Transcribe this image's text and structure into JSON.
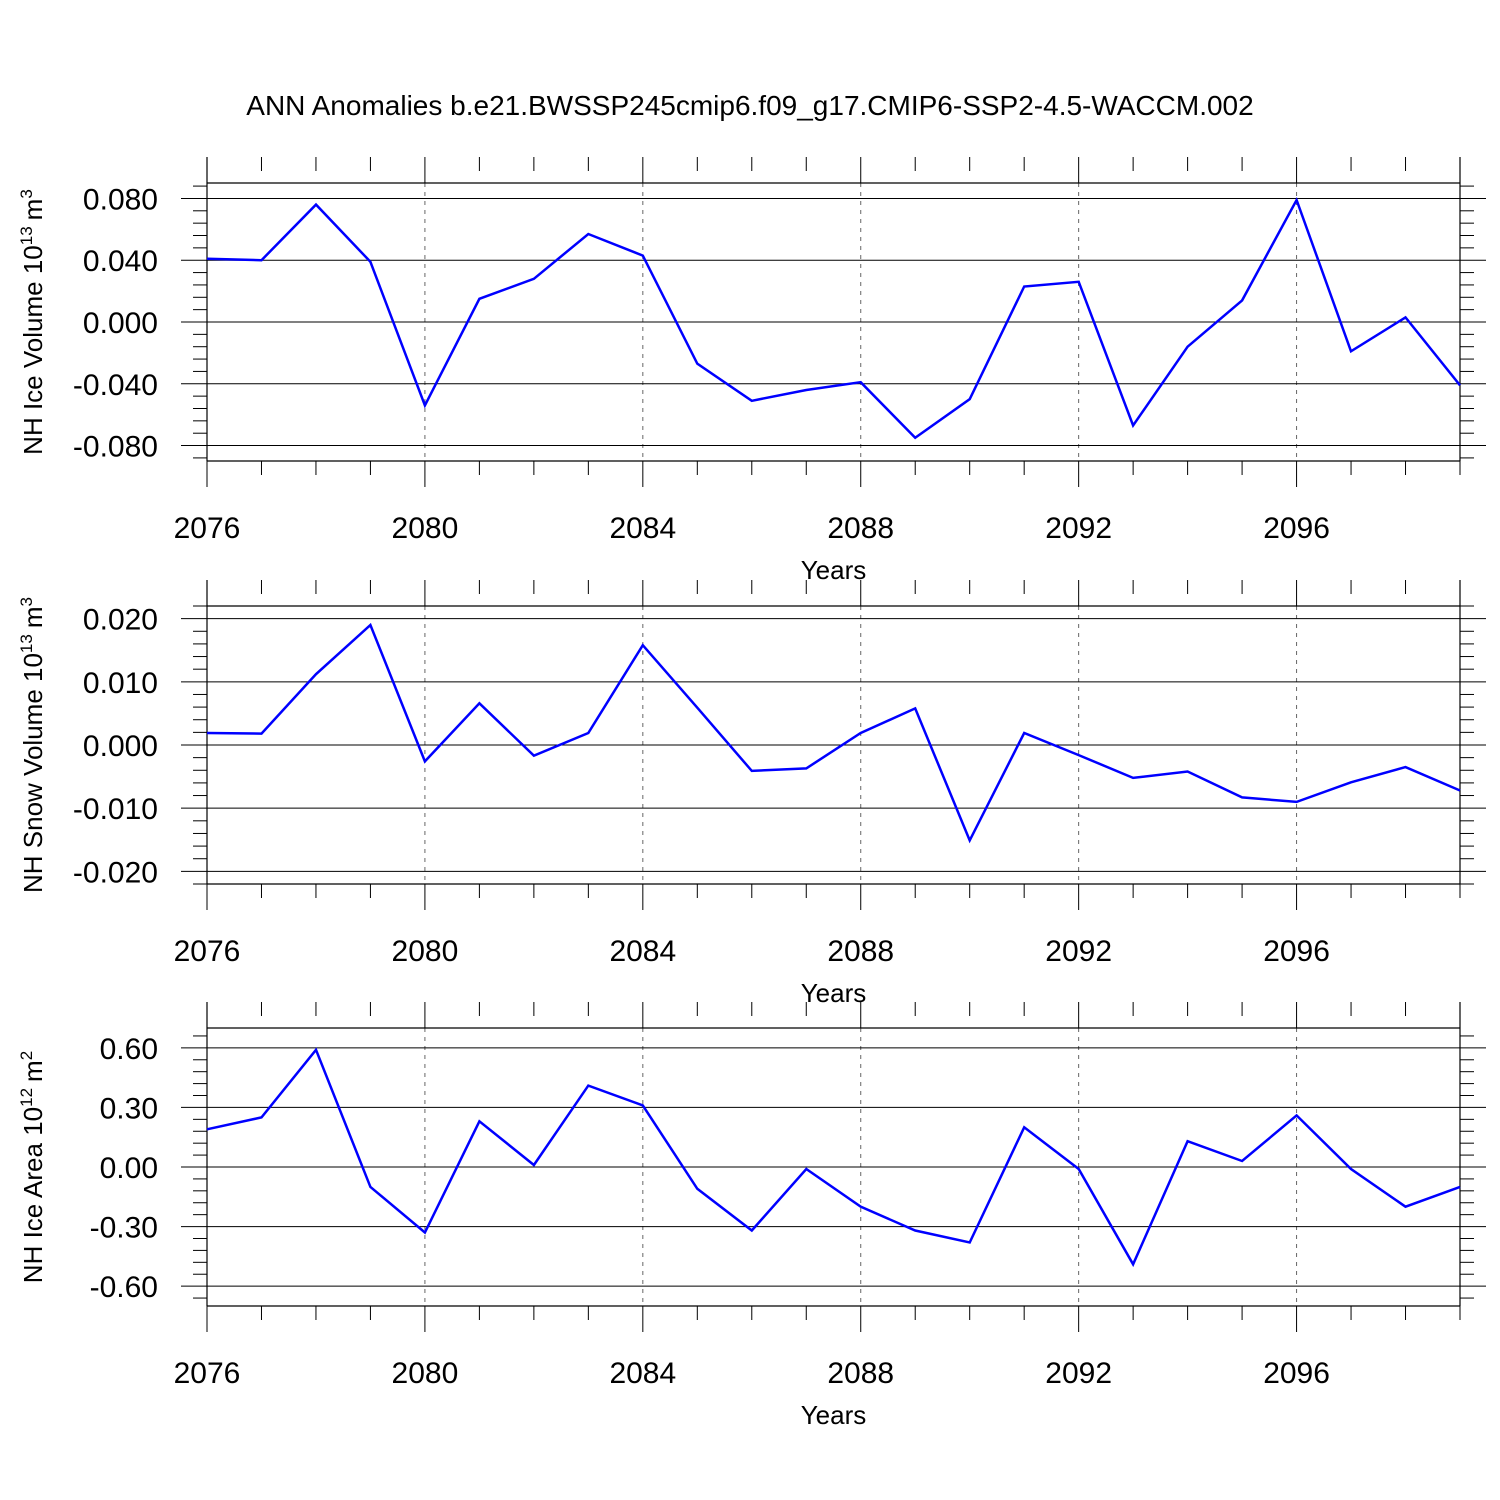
{
  "figure": {
    "title": "ANN Anomalies b.e21.BWSSP245cmip6.f09_g17.CMIP6-SSP2-4.5-WACCM.002",
    "line_color": "#0000ff"
  },
  "chart_data": [
    {
      "type": "line",
      "ylabel_main": "NH Ice Volume 10",
      "ylabel_exp": "13",
      "ylabel_unit": "m",
      "ylabel_unit_exp": "3",
      "xlabel": "Years",
      "xlim": [
        2076,
        2099
      ],
      "ylim": [
        -0.09,
        0.09
      ],
      "xticks": [
        2076,
        2080,
        2084,
        2088,
        2092,
        2096
      ],
      "yticks": [
        -0.08,
        -0.04,
        0.0,
        0.04,
        0.08
      ],
      "ytick_labels": [
        "-0.080",
        "-0.040",
        "0.000",
        "0.040",
        "0.080"
      ],
      "grid_x": [
        2080,
        2084,
        2088,
        2092,
        2096
      ],
      "x": [
        2076,
        2077,
        2078,
        2079,
        2080,
        2081,
        2082,
        2083,
        2084,
        2085,
        2086,
        2087,
        2088,
        2089,
        2090,
        2091,
        2092,
        2093,
        2094,
        2095,
        2096,
        2097,
        2098,
        2099
      ],
      "values": [
        0.041,
        0.04,
        0.076,
        0.039,
        -0.054,
        0.015,
        0.028,
        0.057,
        0.043,
        -0.027,
        -0.051,
        -0.044,
        -0.039,
        -0.075,
        -0.05,
        0.023,
        0.026,
        -0.067,
        -0.016,
        0.014,
        0.079,
        -0.019,
        0.003,
        -0.041
      ]
    },
    {
      "type": "line",
      "ylabel_main": "NH Snow Volume 10",
      "ylabel_exp": "13",
      "ylabel_unit": "m",
      "ylabel_unit_exp": "3",
      "xlabel": "Years",
      "xlim": [
        2076,
        2099
      ],
      "ylim": [
        -0.022,
        0.022
      ],
      "xticks": [
        2076,
        2080,
        2084,
        2088,
        2092,
        2096
      ],
      "yticks": [
        -0.02,
        -0.01,
        0.0,
        0.01,
        0.02
      ],
      "ytick_labels": [
        "-0.020",
        "-0.010",
        "0.000",
        "0.010",
        "0.020"
      ],
      "grid_x": [
        2080,
        2084,
        2088,
        2092,
        2096
      ],
      "x": [
        2076,
        2077,
        2078,
        2079,
        2080,
        2081,
        2082,
        2083,
        2084,
        2085,
        2086,
        2087,
        2088,
        2089,
        2090,
        2091,
        2092,
        2093,
        2094,
        2095,
        2096,
        2097,
        2098,
        2099
      ],
      "values": [
        0.0019,
        0.0018,
        0.0112,
        0.019,
        -0.0026,
        0.0066,
        -0.0017,
        0.0019,
        0.0158,
        0.0059,
        -0.0041,
        -0.0037,
        0.0019,
        0.0058,
        -0.0151,
        0.0019,
        -0.0016,
        -0.0052,
        -0.0042,
        -0.0083,
        -0.009,
        -0.0059,
        -0.0035,
        -0.0072
      ]
    },
    {
      "type": "line",
      "ylabel_main": "NH Ice Area 10",
      "ylabel_exp": "12",
      "ylabel_unit": "m",
      "ylabel_unit_exp": "2",
      "xlabel": "Years",
      "xlim": [
        2076,
        2099
      ],
      "ylim": [
        -0.7,
        0.7
      ],
      "xticks": [
        2076,
        2080,
        2084,
        2088,
        2092,
        2096
      ],
      "yticks": [
        -0.6,
        -0.3,
        0.0,
        0.3,
        0.6
      ],
      "ytick_labels": [
        "-0.60",
        "-0.30",
        "0.00",
        "0.30",
        "0.60"
      ],
      "grid_x": [
        2080,
        2084,
        2088,
        2092,
        2096
      ],
      "x": [
        2076,
        2077,
        2078,
        2079,
        2080,
        2081,
        2082,
        2083,
        2084,
        2085,
        2086,
        2087,
        2088,
        2089,
        2090,
        2091,
        2092,
        2093,
        2094,
        2095,
        2096,
        2097,
        2098,
        2099
      ],
      "values": [
        0.19,
        0.25,
        0.59,
        -0.1,
        -0.33,
        0.23,
        0.01,
        0.41,
        0.31,
        -0.11,
        -0.32,
        -0.01,
        -0.2,
        -0.32,
        -0.38,
        0.2,
        -0.01,
        -0.49,
        0.13,
        0.03,
        0.26,
        -0.01,
        -0.2,
        -0.1
      ]
    }
  ]
}
